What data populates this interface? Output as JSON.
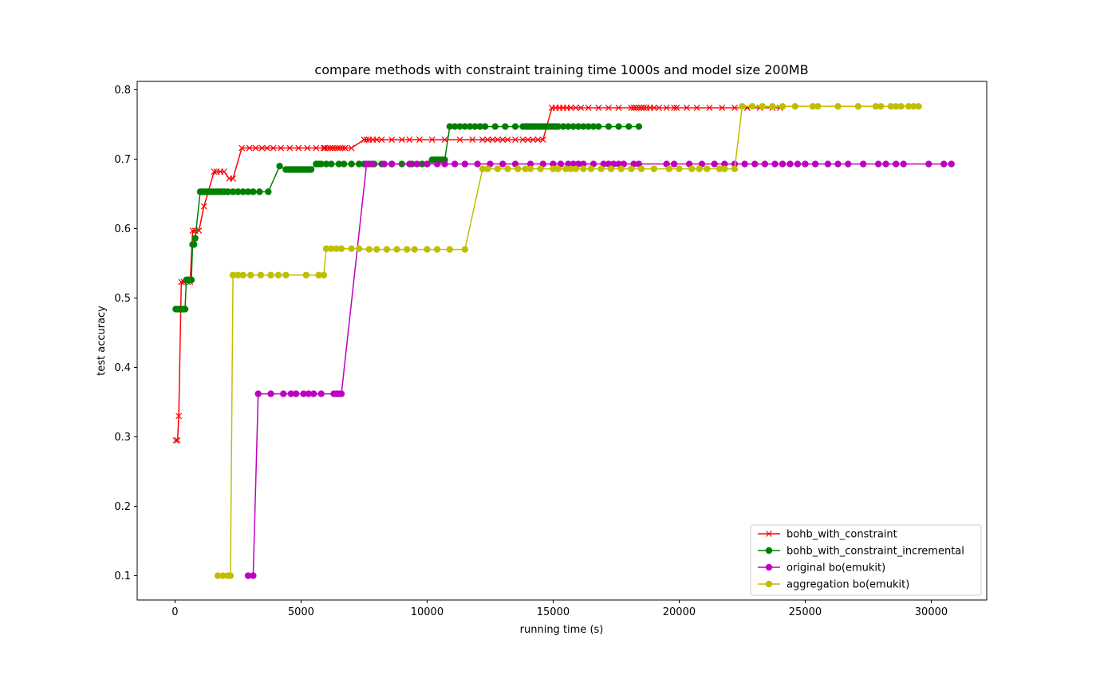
{
  "chart_data": {
    "type": "line",
    "title": "compare methods with constraint training time 1000s and model size 200MB",
    "xlabel": "running time (s)",
    "ylabel": "test accuracy",
    "xlim": [
      -1500,
      32200
    ],
    "ylim": [
      0.065,
      0.812
    ],
    "xticks": [
      0,
      5000,
      10000,
      15000,
      20000,
      25000,
      30000
    ],
    "yticks": [
      0.1,
      0.2,
      0.3,
      0.4,
      0.5,
      0.6,
      0.7,
      0.8
    ],
    "grid": false,
    "legend_position": "lower-right",
    "series": [
      {
        "name": "bohb_with_constraint",
        "color": "#ff0000",
        "marker": "x",
        "x": [
          30,
          100,
          150,
          250,
          350,
          500,
          600,
          700,
          800,
          950,
          1150,
          1550,
          1650,
          1800,
          1950,
          2150,
          2300,
          2650,
          2950,
          3200,
          3450,
          3650,
          3900,
          4200,
          4550,
          4900,
          5250,
          5600,
          5900,
          5950,
          6050,
          6150,
          6250,
          6350,
          6450,
          6550,
          6650,
          6750,
          7000,
          7500,
          7600,
          7700,
          7850,
          8000,
          8200,
          8600,
          9000,
          9300,
          9700,
          10200,
          10700,
          11300,
          11800,
          12200,
          12400,
          12600,
          12800,
          13000,
          13200,
          13500,
          13800,
          14000,
          14200,
          14400,
          14600,
          14950,
          15100,
          15250,
          15400,
          15550,
          15700,
          15900,
          16100,
          16400,
          16800,
          17200,
          17600,
          18100,
          18200,
          18300,
          18400,
          18500,
          18600,
          18700,
          18850,
          19000,
          19200,
          19500,
          19800,
          19900,
          20300,
          20700,
          21200,
          21700,
          22200,
          22700,
          23200,
          23700,
          24000
        ],
        "y": [
          0.295,
          0.295,
          0.33,
          0.523,
          0.523,
          0.523,
          0.523,
          0.597,
          0.597,
          0.597,
          0.632,
          0.682,
          0.682,
          0.682,
          0.682,
          0.672,
          0.672,
          0.716,
          0.716,
          0.716,
          0.716,
          0.716,
          0.716,
          0.716,
          0.716,
          0.716,
          0.716,
          0.716,
          0.716,
          0.716,
          0.716,
          0.716,
          0.716,
          0.716,
          0.716,
          0.716,
          0.716,
          0.716,
          0.716,
          0.728,
          0.728,
          0.728,
          0.728,
          0.728,
          0.728,
          0.728,
          0.728,
          0.728,
          0.728,
          0.728,
          0.728,
          0.728,
          0.728,
          0.728,
          0.728,
          0.728,
          0.728,
          0.728,
          0.728,
          0.728,
          0.728,
          0.728,
          0.728,
          0.728,
          0.728,
          0.774,
          0.774,
          0.774,
          0.774,
          0.774,
          0.774,
          0.774,
          0.774,
          0.774,
          0.774,
          0.774,
          0.774,
          0.774,
          0.774,
          0.774,
          0.774,
          0.774,
          0.774,
          0.774,
          0.774,
          0.774,
          0.774,
          0.774,
          0.774,
          0.774,
          0.774,
          0.774,
          0.774,
          0.774,
          0.774,
          0.774,
          0.774,
          0.774,
          0.774
        ]
      },
      {
        "name": "bohb_with_constraint_incremental",
        "color": "#008000",
        "marker": "o",
        "x": [
          30,
          100,
          150,
          200,
          250,
          300,
          350,
          400,
          450,
          500,
          550,
          600,
          650,
          700,
          750,
          800,
          1000,
          1050,
          1150,
          1250,
          1350,
          1450,
          1550,
          1650,
          1750,
          1850,
          1950,
          2100,
          2300,
          2500,
          2700,
          2900,
          3100,
          3350,
          3700,
          4150,
          4400,
          4500,
          4600,
          4700,
          4800,
          4900,
          5000,
          5100,
          5200,
          5300,
          5400,
          5600,
          5700,
          5800,
          6000,
          6200,
          6500,
          6700,
          7000,
          7300,
          7500,
          7700,
          7900,
          8200,
          8600,
          9000,
          9400,
          9800,
          10000,
          10200,
          10300,
          10400,
          10500,
          10600,
          10700,
          10900,
          11100,
          11300,
          11500,
          11700,
          11900,
          12100,
          12300,
          12700,
          13100,
          13500,
          13800,
          13900,
          14000,
          14100,
          14200,
          14300,
          14400,
          14500,
          14600,
          14700,
          14800,
          14900,
          15000,
          15100,
          15200,
          15400,
          15600,
          15800,
          16000,
          16200,
          16400,
          16600,
          16800,
          17200,
          17600,
          18000,
          18400
        ],
        "y": [
          0.484,
          0.484,
          0.484,
          0.484,
          0.484,
          0.484,
          0.484,
          0.484,
          0.526,
          0.526,
          0.526,
          0.526,
          0.526,
          0.577,
          0.577,
          0.586,
          0.653,
          0.653,
          0.653,
          0.653,
          0.653,
          0.653,
          0.653,
          0.653,
          0.653,
          0.653,
          0.653,
          0.653,
          0.653,
          0.653,
          0.653,
          0.653,
          0.653,
          0.653,
          0.653,
          0.69,
          0.685,
          0.685,
          0.685,
          0.685,
          0.685,
          0.685,
          0.685,
          0.685,
          0.685,
          0.685,
          0.685,
          0.693,
          0.693,
          0.693,
          0.693,
          0.693,
          0.693,
          0.693,
          0.693,
          0.693,
          0.693,
          0.693,
          0.693,
          0.693,
          0.693,
          0.693,
          0.693,
          0.693,
          0.693,
          0.699,
          0.699,
          0.699,
          0.699,
          0.699,
          0.699,
          0.747,
          0.747,
          0.747,
          0.747,
          0.747,
          0.747,
          0.747,
          0.747,
          0.747,
          0.747,
          0.747,
          0.747,
          0.747,
          0.747,
          0.747,
          0.747,
          0.747,
          0.747,
          0.747,
          0.747,
          0.747,
          0.747,
          0.747,
          0.747,
          0.747,
          0.747,
          0.747,
          0.747,
          0.747,
          0.747,
          0.747,
          0.747,
          0.747,
          0.747,
          0.747,
          0.747,
          0.747,
          0.747
        ]
      },
      {
        "name": "original bo(emukit)",
        "color": "#bf00bf",
        "marker": "o",
        "x": [
          2900,
          3100,
          3300,
          3800,
          4300,
          4600,
          4800,
          5100,
          5300,
          5500,
          5800,
          6300,
          6400,
          6500,
          6600,
          7600,
          7800,
          8300,
          8600,
          9300,
          9600,
          10000,
          10400,
          10700,
          11100,
          11500,
          12000,
          12500,
          13000,
          13500,
          14100,
          14600,
          15000,
          15300,
          15600,
          15800,
          16000,
          16200,
          16600,
          17000,
          17200,
          17400,
          17600,
          17800,
          18200,
          18400,
          19500,
          19800,
          20400,
          20900,
          21400,
          21800,
          22200,
          22600,
          23000,
          23400,
          23800,
          24100,
          24400,
          24700,
          25000,
          25400,
          25900,
          26300,
          26700,
          27300,
          27900,
          28200,
          28600,
          28900,
          29900,
          30500,
          30800
        ],
        "y": [
          0.1,
          0.1,
          0.362,
          0.362,
          0.362,
          0.362,
          0.362,
          0.362,
          0.362,
          0.362,
          0.362,
          0.362,
          0.362,
          0.362,
          0.362,
          0.693,
          0.693,
          0.693,
          0.693,
          0.693,
          0.693,
          0.693,
          0.693,
          0.693,
          0.693,
          0.693,
          0.693,
          0.693,
          0.693,
          0.693,
          0.693,
          0.693,
          0.693,
          0.693,
          0.693,
          0.693,
          0.693,
          0.693,
          0.693,
          0.693,
          0.693,
          0.693,
          0.693,
          0.693,
          0.693,
          0.693,
          0.693,
          0.693,
          0.693,
          0.693,
          0.693,
          0.693,
          0.693,
          0.693,
          0.693,
          0.693,
          0.693,
          0.693,
          0.693,
          0.693,
          0.693,
          0.693,
          0.693,
          0.693,
          0.693,
          0.693,
          0.693,
          0.693,
          0.693,
          0.693,
          0.693,
          0.693,
          0.693
        ]
      },
      {
        "name": "aggregation bo(emukit)",
        "color": "#bfbf00",
        "marker": "o",
        "x": [
          1700,
          1900,
          2100,
          2200,
          2300,
          2500,
          2700,
          3000,
          3400,
          3800,
          4100,
          4400,
          5200,
          5700,
          5900,
          6000,
          6200,
          6400,
          6600,
          7000,
          7300,
          7700,
          8000,
          8400,
          8800,
          9200,
          9500,
          10000,
          10400,
          10900,
          11500,
          12200,
          12400,
          12800,
          13200,
          13600,
          13900,
          14100,
          14500,
          15000,
          15200,
          15500,
          15700,
          15900,
          16200,
          16500,
          16900,
          17300,
          17700,
          18100,
          18500,
          19000,
          19600,
          20000,
          20500,
          20800,
          21100,
          21600,
          21800,
          22200,
          22500,
          22900,
          23300,
          23700,
          24100,
          24600,
          25300,
          25500,
          26300,
          27100,
          27800,
          28000,
          28400,
          28600,
          28800,
          29100,
          29300,
          29500
        ],
        "y": [
          0.1,
          0.1,
          0.1,
          0.1,
          0.533,
          0.533,
          0.533,
          0.533,
          0.533,
          0.533,
          0.533,
          0.533,
          0.533,
          0.533,
          0.533,
          0.571,
          0.571,
          0.571,
          0.571,
          0.571,
          0.571,
          0.57,
          0.57,
          0.57,
          0.57,
          0.57,
          0.57,
          0.57,
          0.57,
          0.57,
          0.57,
          0.686,
          0.686,
          0.686,
          0.686,
          0.686,
          0.686,
          0.686,
          0.686,
          0.686,
          0.686,
          0.686,
          0.686,
          0.686,
          0.686,
          0.686,
          0.686,
          0.686,
          0.686,
          0.686,
          0.686,
          0.686,
          0.686,
          0.686,
          0.686,
          0.686,
          0.686,
          0.686,
          0.686,
          0.686,
          0.776,
          0.776,
          0.776,
          0.776,
          0.776,
          0.776,
          0.776,
          0.776,
          0.776,
          0.776,
          0.776,
          0.776,
          0.776,
          0.776,
          0.776,
          0.776,
          0.776,
          0.776
        ]
      }
    ]
  }
}
